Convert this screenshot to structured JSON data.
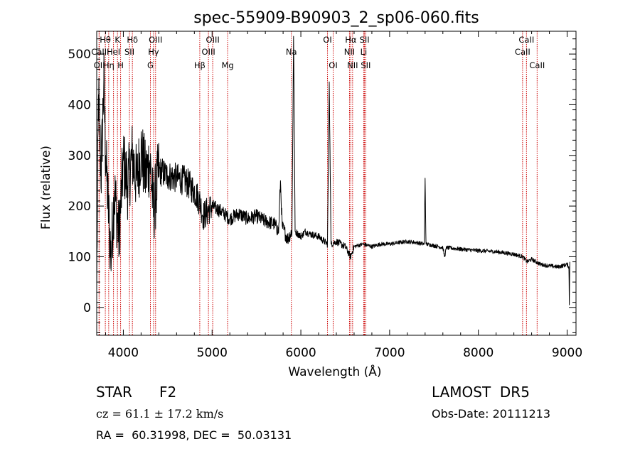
{
  "chart_data": {
    "type": "line",
    "title": "spec-55909-B90903_2_sp06-060.fits",
    "xlabel": "Wavelength (Å)",
    "ylabel": "Flux (relative)",
    "xlim": [
      3700,
      9100
    ],
    "ylim": [
      -55,
      545
    ],
    "x_ticks": [
      4000,
      5000,
      6000,
      7000,
      8000,
      9000
    ],
    "x_tick_labels": [
      "4000",
      "5000",
      "6000",
      "7000",
      "8000",
      "9000"
    ],
    "y_ticks": [
      0,
      100,
      200,
      300,
      400,
      500
    ],
    "y_tick_labels": [
      "0",
      "100",
      "200",
      "300",
      "400",
      "500"
    ],
    "grid": false,
    "line_color": "#000000",
    "marker_color": "#cc0000",
    "spectrum_key_points": [
      [
        3700,
        30
      ],
      [
        3720,
        420
      ],
      [
        3750,
        260
      ],
      [
        3780,
        450
      ],
      [
        3800,
        300
      ],
      [
        3830,
        200
      ],
      [
        3860,
        100
      ],
      [
        3900,
        230
      ],
      [
        3950,
        140
      ],
      [
        4000,
        290
      ],
      [
        4050,
        240
      ],
      [
        4100,
        300
      ],
      [
        4150,
        250
      ],
      [
        4200,
        310
      ],
      [
        4250,
        260
      ],
      [
        4300,
        290
      ],
      [
        4340,
        190
      ],
      [
        4400,
        270
      ],
      [
        4500,
        260
      ],
      [
        4600,
        255
      ],
      [
        4700,
        250
      ],
      [
        4800,
        230
      ],
      [
        4860,
        210
      ],
      [
        4900,
        180
      ],
      [
        5000,
        200
      ],
      [
        5100,
        190
      ],
      [
        5200,
        175
      ],
      [
        5300,
        185
      ],
      [
        5400,
        175
      ],
      [
        5500,
        180
      ],
      [
        5600,
        170
      ],
      [
        5700,
        165
      ],
      [
        5750,
        150
      ],
      [
        5770,
        250
      ],
      [
        5790,
        160
      ],
      [
        5850,
        135
      ],
      [
        5900,
        150
      ],
      [
        5918,
        535
      ],
      [
        5935,
        150
      ],
      [
        6000,
        140
      ],
      [
        6050,
        150
      ],
      [
        6100,
        145
      ],
      [
        6200,
        140
      ],
      [
        6300,
        125
      ],
      [
        6320,
        445
      ],
      [
        6340,
        125
      ],
      [
        6400,
        130
      ],
      [
        6500,
        120
      ],
      [
        6560,
        100
      ],
      [
        6600,
        120
      ],
      [
        6700,
        125
      ],
      [
        6800,
        120
      ],
      [
        6900,
        125
      ],
      [
        7000,
        125
      ],
      [
        7100,
        128
      ],
      [
        7200,
        130
      ],
      [
        7300,
        128
      ],
      [
        7390,
        125
      ],
      [
        7400,
        255
      ],
      [
        7410,
        125
      ],
      [
        7500,
        122
      ],
      [
        7600,
        118
      ],
      [
        7620,
        100
      ],
      [
        7640,
        118
      ],
      [
        7800,
        115
      ],
      [
        8000,
        112
      ],
      [
        8200,
        110
      ],
      [
        8400,
        105
      ],
      [
        8500,
        100
      ],
      [
        8550,
        90
      ],
      [
        8600,
        95
      ],
      [
        8700,
        85
      ],
      [
        8800,
        82
      ],
      [
        8900,
        80
      ],
      [
        9000,
        85
      ],
      [
        9020,
        80
      ],
      [
        9025,
        5
      ],
      [
        9030,
        90
      ]
    ],
    "line_markers": [
      {
        "label": "Hθ",
        "x": 3797,
        "row": 0
      },
      {
        "label": "CaII",
        "x": 3726,
        "row": 1
      },
      {
        "label": "OII",
        "x": 3729,
        "row": 2
      },
      {
        "label": "K",
        "x": 3934,
        "row": 0
      },
      {
        "label": "HeI",
        "x": 3889,
        "row": 1
      },
      {
        "label": "Hη",
        "x": 3835,
        "row": 2
      },
      {
        "label": "Hδ",
        "x": 4102,
        "row": 0
      },
      {
        "label": "SII",
        "x": 4069,
        "row": 1
      },
      {
        "label": "H",
        "x": 3969,
        "row": 2
      },
      {
        "label": "OIII",
        "x": 4363,
        "row": 0
      },
      {
        "label": "Hγ",
        "x": 4341,
        "row": 1
      },
      {
        "label": "G",
        "x": 4305,
        "row": 2
      },
      {
        "label": "OIII",
        "x": 5007,
        "row": 0
      },
      {
        "label": "OIII",
        "x": 4959,
        "row": 1
      },
      {
        "label": "Hβ",
        "x": 4861,
        "row": 2
      },
      {
        "label": "Mg",
        "x": 5175,
        "row": 2
      },
      {
        "label": "Na",
        "x": 5893,
        "row": 1
      },
      {
        "label": "OI",
        "x": 6300,
        "row": 0
      },
      {
        "label": "OI",
        "x": 6364,
        "row": 2
      },
      {
        "label": "Hα",
        "x": 6563,
        "row": 0
      },
      {
        "label": "NII",
        "x": 6548,
        "row": 1
      },
      {
        "label": "NII",
        "x": 6583,
        "row": 2
      },
      {
        "label": "SII",
        "x": 6717,
        "row": 0
      },
      {
        "label": "Li",
        "x": 6708,
        "row": 1
      },
      {
        "label": "SII",
        "x": 6731,
        "row": 2
      },
      {
        "label": "CaII",
        "x": 8542,
        "row": 0
      },
      {
        "label": "CaII",
        "x": 8498,
        "row": 1
      },
      {
        "label": "CaII",
        "x": 8662,
        "row": 2
      }
    ]
  },
  "info": {
    "obj_class": "STAR",
    "subclass": "F2",
    "survey": "LAMOST  DR5",
    "cz": "cz = 61.1 ± 17.2 km/s",
    "obs_date": "Obs-Date: 20111213",
    "radec": "RA =  60.31998, DEC =  50.03131"
  }
}
